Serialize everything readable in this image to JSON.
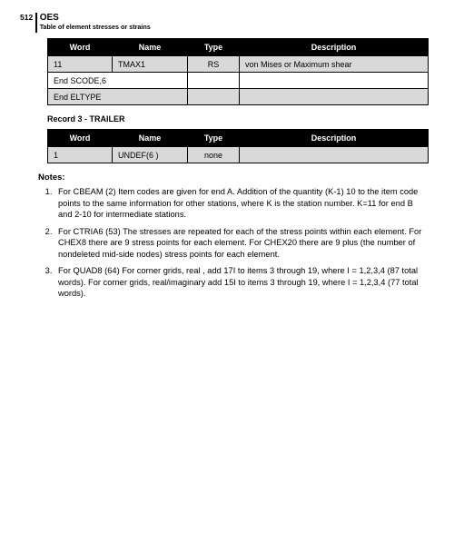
{
  "header": {
    "page_num": "512",
    "title": "OES",
    "subtitle": "Table of element stresses or strains"
  },
  "table1": {
    "columns": [
      "Word",
      "Name",
      "Type",
      "Description"
    ],
    "rows": [
      {
        "word": "11",
        "name": "TMAX1",
        "type": "RS",
        "desc": "von Mises or Maximum shear",
        "zebra": "odd"
      },
      {
        "span_text": "End SCODE,6",
        "zebra": "even"
      },
      {
        "span_text": "End ELTYPE",
        "zebra": "odd"
      }
    ]
  },
  "record3_heading": "Record 3 - TRAILER",
  "table2": {
    "columns": [
      "Word",
      "Name",
      "Type",
      "Description"
    ],
    "rows": [
      {
        "word": "1",
        "name": "UNDEF(6 )",
        "type": "none",
        "desc": "",
        "zebra": "odd"
      }
    ]
  },
  "notes_heading": "Notes:",
  "notes": [
    "For CBEAM (2) Item codes are given for end A. Addition of the quantity (K-1) 10 to the item code points to the same information for other stations, where K is the station number. K=11 for end B and 2-10 for intermediate stations.",
    "For CTRIA6 (53) The stresses are repeated for each of the stress points within each element. For CHEX8 there are 9 stress points for each element. For CHEX20 there are 9 plus (the number of nondeleted mid-side nodes) stress points for each element.",
    "For QUAD8 (64) For corner grids, real , add 17I to items 3 through 19, where I = 1,2,3,4 (87 total words). For corner grids, real/imaginary add 15I to items 3 through 19, where I = 1,2,3,4 (77 total words)."
  ]
}
